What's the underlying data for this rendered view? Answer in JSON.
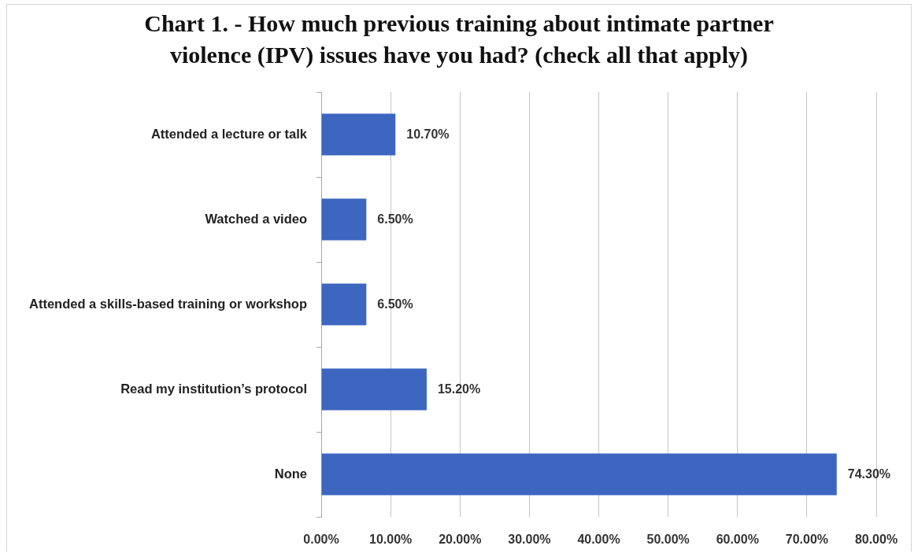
{
  "chart_data": {
    "type": "bar",
    "orientation": "horizontal",
    "title": "Chart 1. - How much previous training about intimate partner violence (IPV) issues have you had? (check all that apply)",
    "categories": [
      "Attended a lecture or talk",
      "Watched a video",
      "Attended a skills-based training or workshop",
      "Read my institution’s protocol",
      "None"
    ],
    "values": [
      10.7,
      6.5,
      6.5,
      15.2,
      74.3
    ],
    "value_labels": [
      "10.70%",
      "6.50%",
      "6.50%",
      "15.20%",
      "74.30%"
    ],
    "color": "#3d66c0",
    "xlim": [
      0,
      80
    ],
    "xticks": [
      {
        "value": 0,
        "label": "0.00%"
      },
      {
        "value": 10,
        "label": "10.00%"
      },
      {
        "value": 20,
        "label": "20.00%"
      },
      {
        "value": 30,
        "label": "30.00%"
      },
      {
        "value": 40,
        "label": "40.00%"
      },
      {
        "value": 50,
        "label": "50.00%"
      },
      {
        "value": 60,
        "label": "60.00%"
      },
      {
        "value": 70,
        "label": "70.00%"
      },
      {
        "value": 80,
        "label": "80.00%"
      }
    ],
    "grid": "x"
  }
}
